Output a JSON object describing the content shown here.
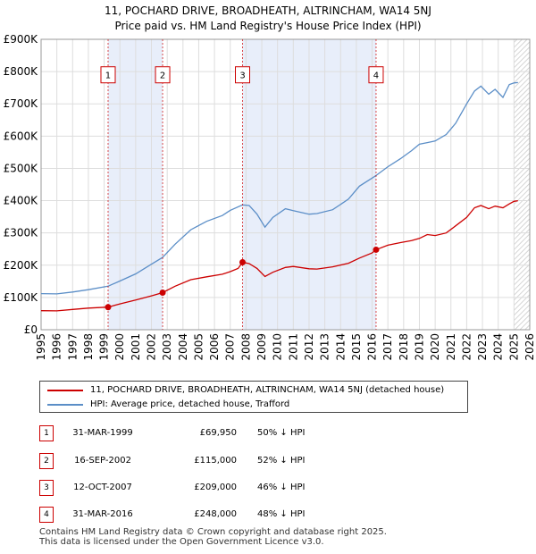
{
  "title": {
    "line1": "11, POCHARD DRIVE, BROADHEATH, ALTRINCHAM, WA14 5NJ",
    "line2": "Price paid vs. HM Land Registry's House Price Index (HPI)"
  },
  "chart_data": {
    "type": "line",
    "xlim": [
      1995,
      2026
    ],
    "ylim": [
      0,
      900000
    ],
    "x_ticks": [
      "1995",
      "1996",
      "1997",
      "1998",
      "1999",
      "2000",
      "2001",
      "2002",
      "2003",
      "2004",
      "2005",
      "2006",
      "2007",
      "2008",
      "2009",
      "2010",
      "2011",
      "2012",
      "2013",
      "2014",
      "2015",
      "2016",
      "2017",
      "2018",
      "2019",
      "2020",
      "2021",
      "2022",
      "2023",
      "2024",
      "2025",
      "2026"
    ],
    "y_ticks": [
      {
        "value": 0,
        "label": "£0"
      },
      {
        "value": 100000,
        "label": "£100K"
      },
      {
        "value": 200000,
        "label": "£200K"
      },
      {
        "value": 300000,
        "label": "£300K"
      },
      {
        "value": 400000,
        "label": "£400K"
      },
      {
        "value": 500000,
        "label": "£500K"
      },
      {
        "value": 600000,
        "label": "£600K"
      },
      {
        "value": 700000,
        "label": "£700K"
      },
      {
        "value": 800000,
        "label": "£800K"
      },
      {
        "value": 900000,
        "label": "£900K"
      }
    ],
    "grid": true,
    "shaded_spans": [
      [
        1999.25,
        2002.71
      ],
      [
        2007.78,
        2016.25
      ]
    ],
    "hatched_from": 2025.0,
    "series": [
      {
        "name": "11, POCHARD DRIVE, BROADHEATH, ALTRINCHAM, WA14 5NJ (detached house)",
        "color": "#cc0000",
        "points": [
          [
            1995.0,
            59000
          ],
          [
            1996.0,
            58500
          ],
          [
            1997.0,
            63000
          ],
          [
            1998.0,
            67000
          ],
          [
            1999.25,
            69950
          ],
          [
            2000.0,
            80000
          ],
          [
            2001.0,
            92000
          ],
          [
            2002.0,
            105000
          ],
          [
            2002.71,
            115000
          ],
          [
            2003.5,
            135000
          ],
          [
            2004.5,
            155000
          ],
          [
            2005.5,
            164000
          ],
          [
            2006.5,
            172000
          ],
          [
            2007.0,
            180000
          ],
          [
            2007.5,
            190000
          ],
          [
            2007.78,
            209000
          ],
          [
            2008.2,
            205000
          ],
          [
            2008.7,
            190000
          ],
          [
            2009.2,
            165000
          ],
          [
            2009.7,
            178000
          ],
          [
            2010.5,
            193000
          ],
          [
            2011.0,
            196000
          ],
          [
            2012.0,
            189000
          ],
          [
            2012.5,
            188000
          ],
          [
            2013.5,
            195000
          ],
          [
            2014.5,
            206000
          ],
          [
            2015.2,
            222000
          ],
          [
            2016.0,
            238000
          ],
          [
            2016.25,
            248000
          ],
          [
            2017.0,
            262000
          ],
          [
            2017.8,
            270000
          ],
          [
            2018.5,
            276000
          ],
          [
            2019.0,
            283000
          ],
          [
            2019.5,
            295000
          ],
          [
            2020.0,
            292000
          ],
          [
            2020.7,
            300000
          ],
          [
            2021.3,
            322000
          ],
          [
            2022.0,
            348000
          ],
          [
            2022.5,
            378000
          ],
          [
            2022.9,
            385000
          ],
          [
            2023.4,
            375000
          ],
          [
            2023.8,
            383000
          ],
          [
            2024.3,
            378000
          ],
          [
            2024.7,
            390000
          ],
          [
            2025.0,
            398000
          ],
          [
            2025.25,
            400000
          ]
        ]
      },
      {
        "name": "HPI: Average price, detached house, Trafford",
        "color": "#5b8ec7",
        "points": [
          [
            1995.0,
            112000
          ],
          [
            1996.0,
            111000
          ],
          [
            1997.0,
            117000
          ],
          [
            1998.0,
            124000
          ],
          [
            1999.25,
            135000
          ],
          [
            2000.0,
            151000
          ],
          [
            2001.0,
            173000
          ],
          [
            2002.0,
            203000
          ],
          [
            2002.71,
            224000
          ],
          [
            2003.5,
            265000
          ],
          [
            2004.5,
            310000
          ],
          [
            2005.5,
            336000
          ],
          [
            2006.5,
            354000
          ],
          [
            2007.0,
            370000
          ],
          [
            2007.78,
            387000
          ],
          [
            2008.2,
            385000
          ],
          [
            2008.7,
            358000
          ],
          [
            2009.2,
            318000
          ],
          [
            2009.7,
            348000
          ],
          [
            2010.5,
            375000
          ],
          [
            2011.0,
            369000
          ],
          [
            2012.0,
            358000
          ],
          [
            2012.5,
            360000
          ],
          [
            2013.5,
            372000
          ],
          [
            2014.5,
            405000
          ],
          [
            2015.2,
            445000
          ],
          [
            2016.0,
            470000
          ],
          [
            2016.25,
            478000
          ],
          [
            2017.0,
            505000
          ],
          [
            2017.8,
            530000
          ],
          [
            2018.5,
            555000
          ],
          [
            2019.0,
            575000
          ],
          [
            2019.5,
            580000
          ],
          [
            2020.0,
            585000
          ],
          [
            2020.7,
            605000
          ],
          [
            2021.3,
            640000
          ],
          [
            2022.0,
            700000
          ],
          [
            2022.5,
            740000
          ],
          [
            2022.9,
            755000
          ],
          [
            2023.4,
            730000
          ],
          [
            2023.8,
            745000
          ],
          [
            2024.3,
            720000
          ],
          [
            2024.7,
            760000
          ],
          [
            2025.0,
            765000
          ],
          [
            2025.25,
            766000
          ]
        ]
      }
    ],
    "sales": [
      {
        "label": "1",
        "x": 1999.25,
        "y": 69950
      },
      {
        "label": "2",
        "x": 2002.71,
        "y": 115000
      },
      {
        "label": "3",
        "x": 2007.78,
        "y": 209000
      },
      {
        "label": "4",
        "x": 2016.25,
        "y": 248000
      }
    ],
    "marker_label_value": 790000
  },
  "legend": {
    "property": "11, POCHARD DRIVE, BROADHEATH, ALTRINCHAM, WA14 5NJ (detached house)",
    "hpi": "HPI: Average price, detached house, Trafford"
  },
  "sales_table": [
    {
      "num": "1",
      "date": "31-MAR-1999",
      "price": "£69,950",
      "hpi": "50% ↓ HPI"
    },
    {
      "num": "2",
      "date": "16-SEP-2002",
      "price": "£115,000",
      "hpi": "52% ↓ HPI"
    },
    {
      "num": "3",
      "date": "12-OCT-2007",
      "price": "£209,000",
      "hpi": "46% ↓ HPI"
    },
    {
      "num": "4",
      "date": "31-MAR-2016",
      "price": "£248,000",
      "hpi": "48% ↓ HPI"
    }
  ],
  "footer": {
    "line1": "Contains HM Land Registry data © Crown copyright and database right 2025.",
    "line2": "This data is licensed under the Open Government Licence v3.0."
  }
}
